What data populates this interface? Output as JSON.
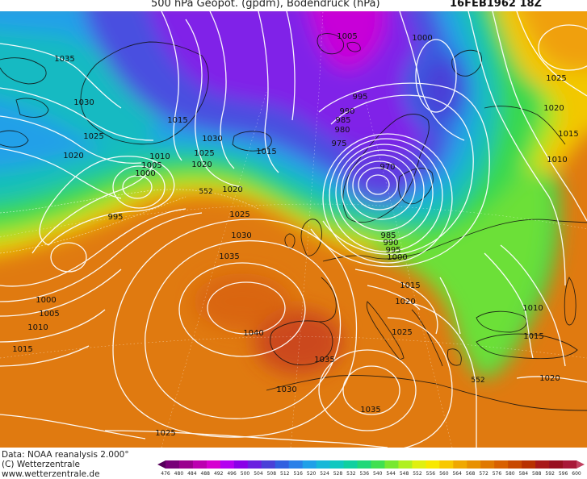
{
  "header": {
    "title": "500 hPa Geopot. (gpdm), Bodendruck (hPa)",
    "datetime": "16FEB1962 18Z"
  },
  "footer": {
    "data_source": "Data: NOAA reanalysis 2.000°",
    "copyright": "(C) Wetterzentrale",
    "website": "www.wetterzentrale.de"
  },
  "colorbar": {
    "labels": [
      "476",
      "480",
      "484",
      "488",
      "492",
      "496",
      "500",
      "504",
      "508",
      "512",
      "516",
      "520",
      "524",
      "528",
      "532",
      "536",
      "540",
      "544",
      "548",
      "552",
      "556",
      "560",
      "564",
      "568",
      "572",
      "576",
      "580",
      "584",
      "588",
      "592",
      "596",
      "600"
    ],
    "colors": [
      "#55005a",
      "#780078",
      "#9a008e",
      "#bc00b0",
      "#d600d0",
      "#b400f0",
      "#8a00e8",
      "#6a20e0",
      "#4a40d8",
      "#3060e0",
      "#2a80e8",
      "#20a0e8",
      "#18b8d8",
      "#10c8c0",
      "#10d0a0",
      "#20d878",
      "#40e050",
      "#78e830",
      "#b0f020",
      "#e0f010",
      "#f8e800",
      "#f8c800",
      "#f0a800",
      "#e89000",
      "#e07800",
      "#d86000",
      "#c84800",
      "#b83000",
      "#a81818",
      "#981020",
      "#a81838",
      "#c04060"
    ]
  },
  "map": {
    "pressure_labels": [
      {
        "text": "1005"
      },
      {
        "text": "1000"
      },
      {
        "text": "1035"
      },
      {
        "text": "1030"
      },
      {
        "text": "1025"
      },
      {
        "text": "1020"
      },
      {
        "text": "1015"
      },
      {
        "text": "1030"
      },
      {
        "text": "1025"
      },
      {
        "text": "1010"
      },
      {
        "text": "1005"
      },
      {
        "text": "1000"
      },
      {
        "text": "995"
      },
      {
        "text": "1020"
      },
      {
        "text": "1015"
      },
      {
        "text": "995"
      },
      {
        "text": "990"
      },
      {
        "text": "985"
      },
      {
        "text": "980"
      },
      {
        "text": "975"
      },
      {
        "text": "970"
      },
      {
        "text": "985"
      },
      {
        "text": "990"
      },
      {
        "text": "995"
      },
      {
        "text": "1000"
      },
      {
        "text": "1020"
      },
      {
        "text": "1025"
      },
      {
        "text": "1030"
      },
      {
        "text": "1035"
      },
      {
        "text": "1025"
      },
      {
        "text": "1020"
      },
      {
        "text": "1015"
      },
      {
        "text": "1010"
      },
      {
        "text": "1000"
      },
      {
        "text": "1005"
      },
      {
        "text": "1010"
      },
      {
        "text": "1015"
      },
      {
        "text": "1040"
      },
      {
        "text": "1035"
      },
      {
        "text": "1030"
      },
      {
        "text": "1035"
      },
      {
        "text": "1025"
      },
      {
        "text": "1015"
      },
      {
        "text": "1020"
      },
      {
        "text": "1025"
      },
      {
        "text": "1010"
      },
      {
        "text": "1015"
      },
      {
        "text": "1020"
      }
    ],
    "geopot_labels": [
      {
        "text": "552"
      },
      {
        "text": "552"
      }
    ]
  }
}
